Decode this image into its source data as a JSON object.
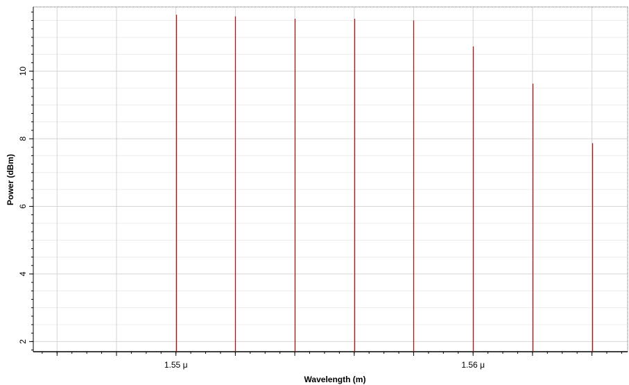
{
  "chart_data": {
    "type": "bar",
    "xlabel": "Wavelength (m)",
    "ylabel": "Power (dBm)",
    "x_unit": "m",
    "xlim": [
      1.5452e-06,
      1.5652e-06
    ],
    "ylim": [
      1.7,
      11.9
    ],
    "x_ticks": [
      {
        "value": 1.55e-06,
        "label": "1.55 μ"
      },
      {
        "value": 1.56e-06,
        "label": "1.56 μ"
      }
    ],
    "y_ticks": [
      {
        "value": 2,
        "label": "2"
      },
      {
        "value": 4,
        "label": "4"
      },
      {
        "value": 6,
        "label": "6"
      },
      {
        "value": 8,
        "label": "8"
      },
      {
        "value": 10,
        "label": "10"
      }
    ],
    "x_gridlines": [
      1.546e-06,
      1.548e-06,
      1.55e-06,
      1.552e-06,
      1.554e-06,
      1.556e-06,
      1.558e-06,
      1.56e-06,
      1.562e-06,
      1.564e-06
    ],
    "x": [
      1.55e-06,
      1.552e-06,
      1.554e-06,
      1.556e-06,
      1.558e-06,
      1.56e-06,
      1.562e-06,
      1.564e-06
    ],
    "values": [
      11.67,
      11.62,
      11.55,
      11.55,
      11.5,
      10.73,
      9.63,
      7.87
    ],
    "grid": true,
    "colors": {
      "stem": "#a11a1a",
      "grid_major": "#d4d4d4",
      "grid_minor": "#ececec",
      "axis": "#000000"
    }
  }
}
